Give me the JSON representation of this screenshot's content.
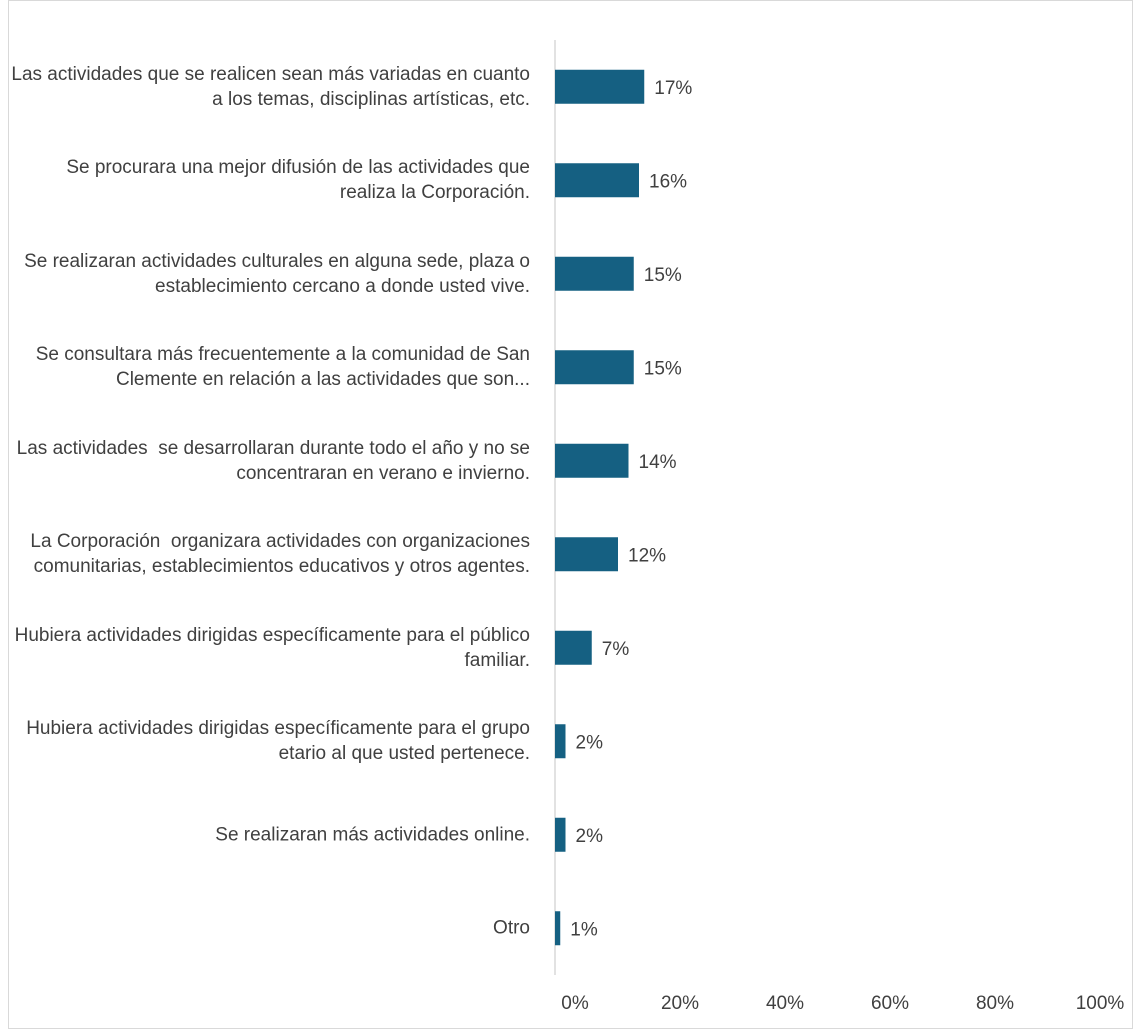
{
  "chart_data": {
    "type": "bar",
    "orientation": "horizontal",
    "categories": [
      "Las actividades que se realicen sean más variadas en cuanto a los temas, disciplinas artísticas, etc.",
      "Se procurara una mejor difusión de las actividades que realiza la Corporación.",
      "Se realizaran actividades culturales en alguna sede, plaza o establecimiento cercano a donde usted vive.",
      "Se consultara más frecuentemente a la comunidad de San Clemente en relación a las actividades que son...",
      "Las actividades  se desarrollaran durante todo el año y no se concentraran en verano e invierno.",
      "La Corporación  organizara actividades con organizaciones comunitarias, establecimientos educativos y otros agentes.",
      "Hubiera actividades dirigidas específicamente para el público familiar.",
      "Hubiera actividades dirigidas específicamente para el grupo etario al que usted pertenece.",
      "Se realizaran más actividades online.",
      "Otro"
    ],
    "values": [
      17,
      16,
      15,
      15,
      14,
      12,
      7,
      2,
      2,
      1
    ],
    "value_labels": [
      "17%",
      "16%",
      "15%",
      "15%",
      "14%",
      "12%",
      "7%",
      "2%",
      "2%",
      "1%"
    ],
    "color": "#156082",
    "xlim": [
      0,
      100
    ],
    "xticks": [
      {
        "value": 0,
        "label": "0%"
      },
      {
        "value": 20,
        "label": "20%"
      },
      {
        "value": 40,
        "label": "40%"
      },
      {
        "value": 60,
        "label": "60%"
      },
      {
        "value": 80,
        "label": "80%"
      },
      {
        "value": 100,
        "label": "100%"
      }
    ],
    "grid": false
  }
}
